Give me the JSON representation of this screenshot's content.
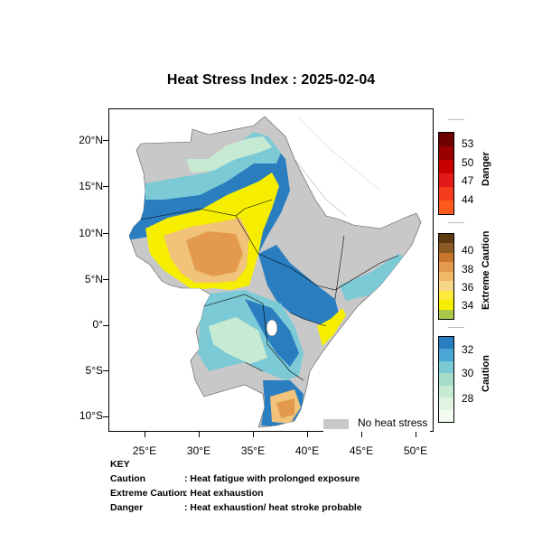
{
  "title": "Heat Stress Index : 2025-02-04",
  "axes": {
    "lat_labels": [
      "20°N",
      "15°N",
      "10°N",
      "5°N",
      "0°",
      "5°S",
      "10°S"
    ],
    "lon_labels": [
      "25°E",
      "30°E",
      "35°E",
      "40°E",
      "45°E",
      "50°E"
    ]
  },
  "no_stress_label": "No heat stress",
  "legend": {
    "danger": {
      "title": "Danger",
      "ticks": [
        "53",
        "50",
        "47",
        "44"
      ],
      "colors": [
        "#6e0000",
        "#9a0000",
        "#c80000",
        "#e41a1a",
        "#f53c1e",
        "#ff5a1e"
      ]
    },
    "extreme": {
      "title": "Extreme Caution",
      "ticks": [
        "40",
        "38",
        "36",
        "34"
      ],
      "colors": [
        "#5c3a0e",
        "#8c5a24",
        "#c8752e",
        "#e39a4c",
        "#f0b866",
        "#f7d68a",
        "#ffe93a",
        "#f6ee00",
        "#a8c84a"
      ]
    },
    "caution": {
      "title": "Caution",
      "ticks": [
        "32",
        "30",
        "28"
      ],
      "colors": [
        "#2a7ec0",
        "#4aa6d4",
        "#7ccad6",
        "#a6dcc8",
        "#c7ebd2",
        "#e2f4e2",
        "#f4fbf0"
      ]
    }
  },
  "key": {
    "heading": "KEY",
    "rows": [
      {
        "term": "Caution",
        "desc": ": Heat fatigue with prolonged exposure"
      },
      {
        "term": "Extreme Caution",
        "desc": ": Heat exhaustion"
      },
      {
        "term": "Danger",
        "desc": ": Heat exhaustion/ heat stroke probable"
      }
    ]
  },
  "map_colors": {
    "no_stress": "#c8c8c8",
    "caution_dark": "#2a7ec0",
    "caution_mid": "#7ccad6",
    "caution_light": "#c7ebd2",
    "extreme_yellow": "#f6ee00",
    "extreme_light": "#f0c27a",
    "extreme_orange": "#e39a4c"
  }
}
